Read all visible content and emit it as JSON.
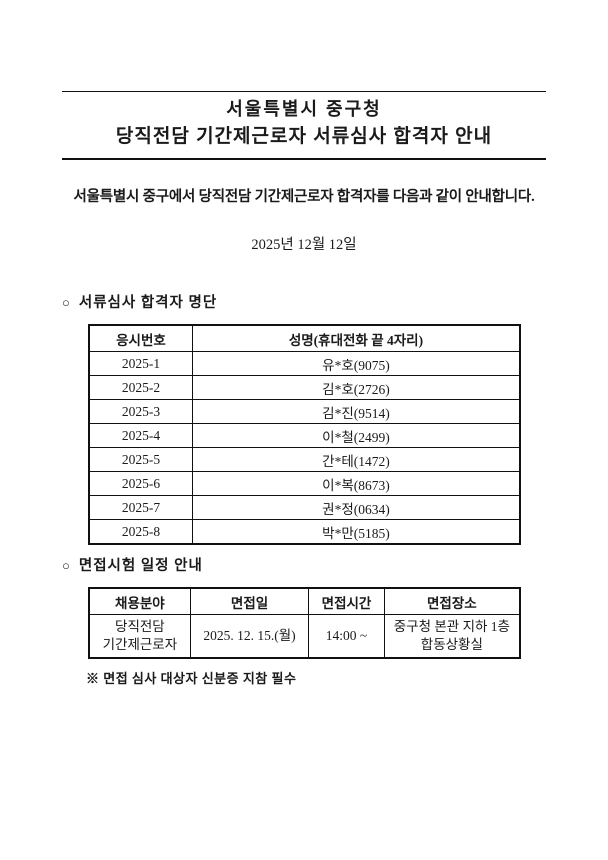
{
  "page": {
    "title_line1": "서울특별시 중구청",
    "title_line2": "당직전담 기간제근로자 서류심사 합격자 안내",
    "intro": "서울특별시 중구에서 당직전담 기간제근로자 합격자를 다음과 같이 안내합니다.",
    "date": "2025년 12월 12일"
  },
  "section1": {
    "marker": "○",
    "title": "서류심사 합격자 명단"
  },
  "applicant_table": {
    "headers": [
      "응시번호",
      "성명(휴대전화 끝 4자리)"
    ],
    "rows": [
      [
        "2025-1",
        "유*호(9075)"
      ],
      [
        "2025-2",
        "김*호(2726)"
      ],
      [
        "2025-3",
        "김*진(9514)"
      ],
      [
        "2025-4",
        "이*철(2499)"
      ],
      [
        "2025-5",
        "간*테(1472)"
      ],
      [
        "2025-6",
        "이*복(8673)"
      ],
      [
        "2025-7",
        "권*정(0634)"
      ],
      [
        "2025-8",
        "박*만(5185)"
      ]
    ]
  },
  "section2": {
    "marker": "○",
    "title": "면접시험 일정 안내"
  },
  "interview_table": {
    "headers": [
      "채용분야",
      "면접일",
      "면접시간",
      "면접장소"
    ],
    "row": [
      "당직전담\n기간제근로자",
      "2025. 12. 15.(월)",
      "14:00 ~",
      "중구청 본관 지하 1층\n합동상황실"
    ]
  },
  "note": "※ 면접 심사 대상자 신분증 지참 필수",
  "colors": {
    "text": "#1a1a1a",
    "border": "#111111",
    "background": "#ffffff"
  }
}
